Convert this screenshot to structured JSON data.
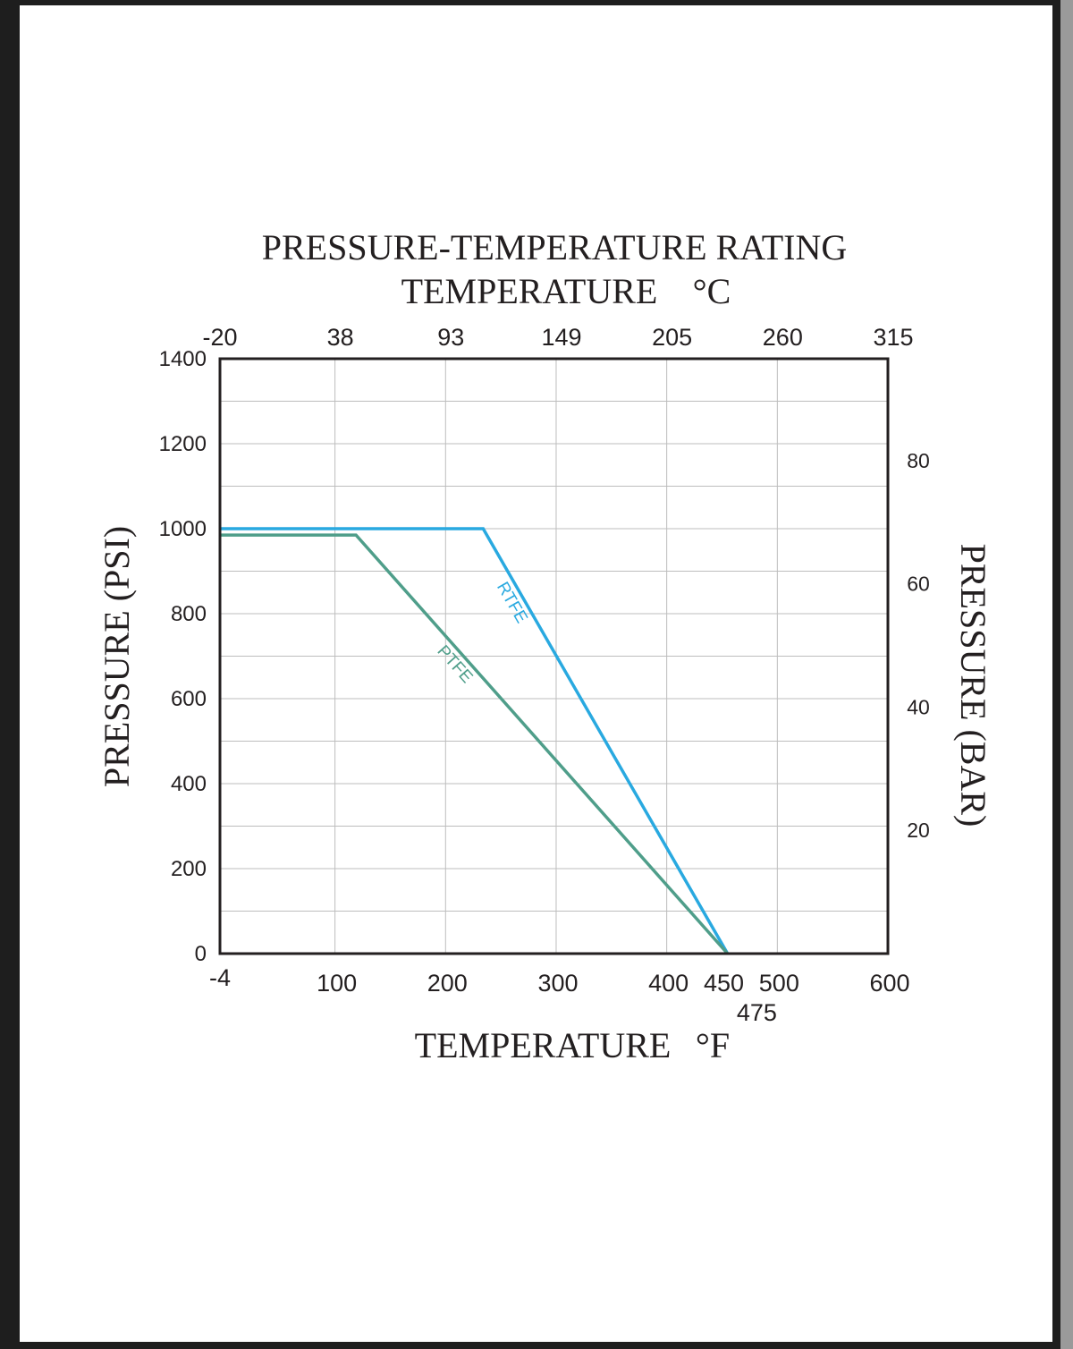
{
  "chart_data": {
    "type": "line",
    "title": "PRESSURE-TEMPERATURE RATING",
    "top_axis_label": "TEMPERATURE",
    "top_axis_unit": "°C",
    "top_ticks": [
      {
        "label": "-20",
        "value": -4
      },
      {
        "label": "38",
        "value": 100
      },
      {
        "label": "93",
        "value": 200
      },
      {
        "label": "149",
        "value": 300
      },
      {
        "label": "205",
        "value": 400
      },
      {
        "label": "260",
        "value": 500
      },
      {
        "label": "315",
        "value": 600
      }
    ],
    "xlabel": "TEMPERATURE",
    "xlabel_unit": "°F",
    "x_ticks": [
      {
        "label": "-4",
        "value": -4
      },
      {
        "label": "100",
        "value": 100
      },
      {
        "label": "200",
        "value": 200
      },
      {
        "label": "300",
        "value": 300
      },
      {
        "label": "400",
        "value": 400
      },
      {
        "label": "450",
        "value": 450
      },
      {
        "label": "500",
        "value": 500
      },
      {
        "label": "600",
        "value": 600
      }
    ],
    "x_extra_label": {
      "label": "475",
      "value": 475
    },
    "xlim": [
      -4,
      600
    ],
    "ylabel": "PRESSURE (PSI)",
    "y_ticks": [
      0,
      200,
      400,
      600,
      800,
      1000,
      1200,
      1400
    ],
    "ylim": [
      0,
      1400
    ],
    "y2label": "PRESSURE (BAR)",
    "y2_ticks": [
      {
        "label": "20",
        "value": 20
      },
      {
        "label": "40",
        "value": 40
      },
      {
        "label": "60",
        "value": 60
      },
      {
        "label": "80",
        "value": 80
      }
    ],
    "grid": true,
    "series": [
      {
        "name": "RTFE",
        "color": "#29a9e0",
        "points": [
          [
            -4,
            1000
          ],
          [
            234,
            1000
          ],
          [
            455,
            0
          ]
        ]
      },
      {
        "name": "PTFE",
        "color": "#4f9e8a",
        "points": [
          [
            -4,
            985
          ],
          [
            119,
            985
          ],
          [
            455,
            0
          ]
        ]
      }
    ]
  }
}
